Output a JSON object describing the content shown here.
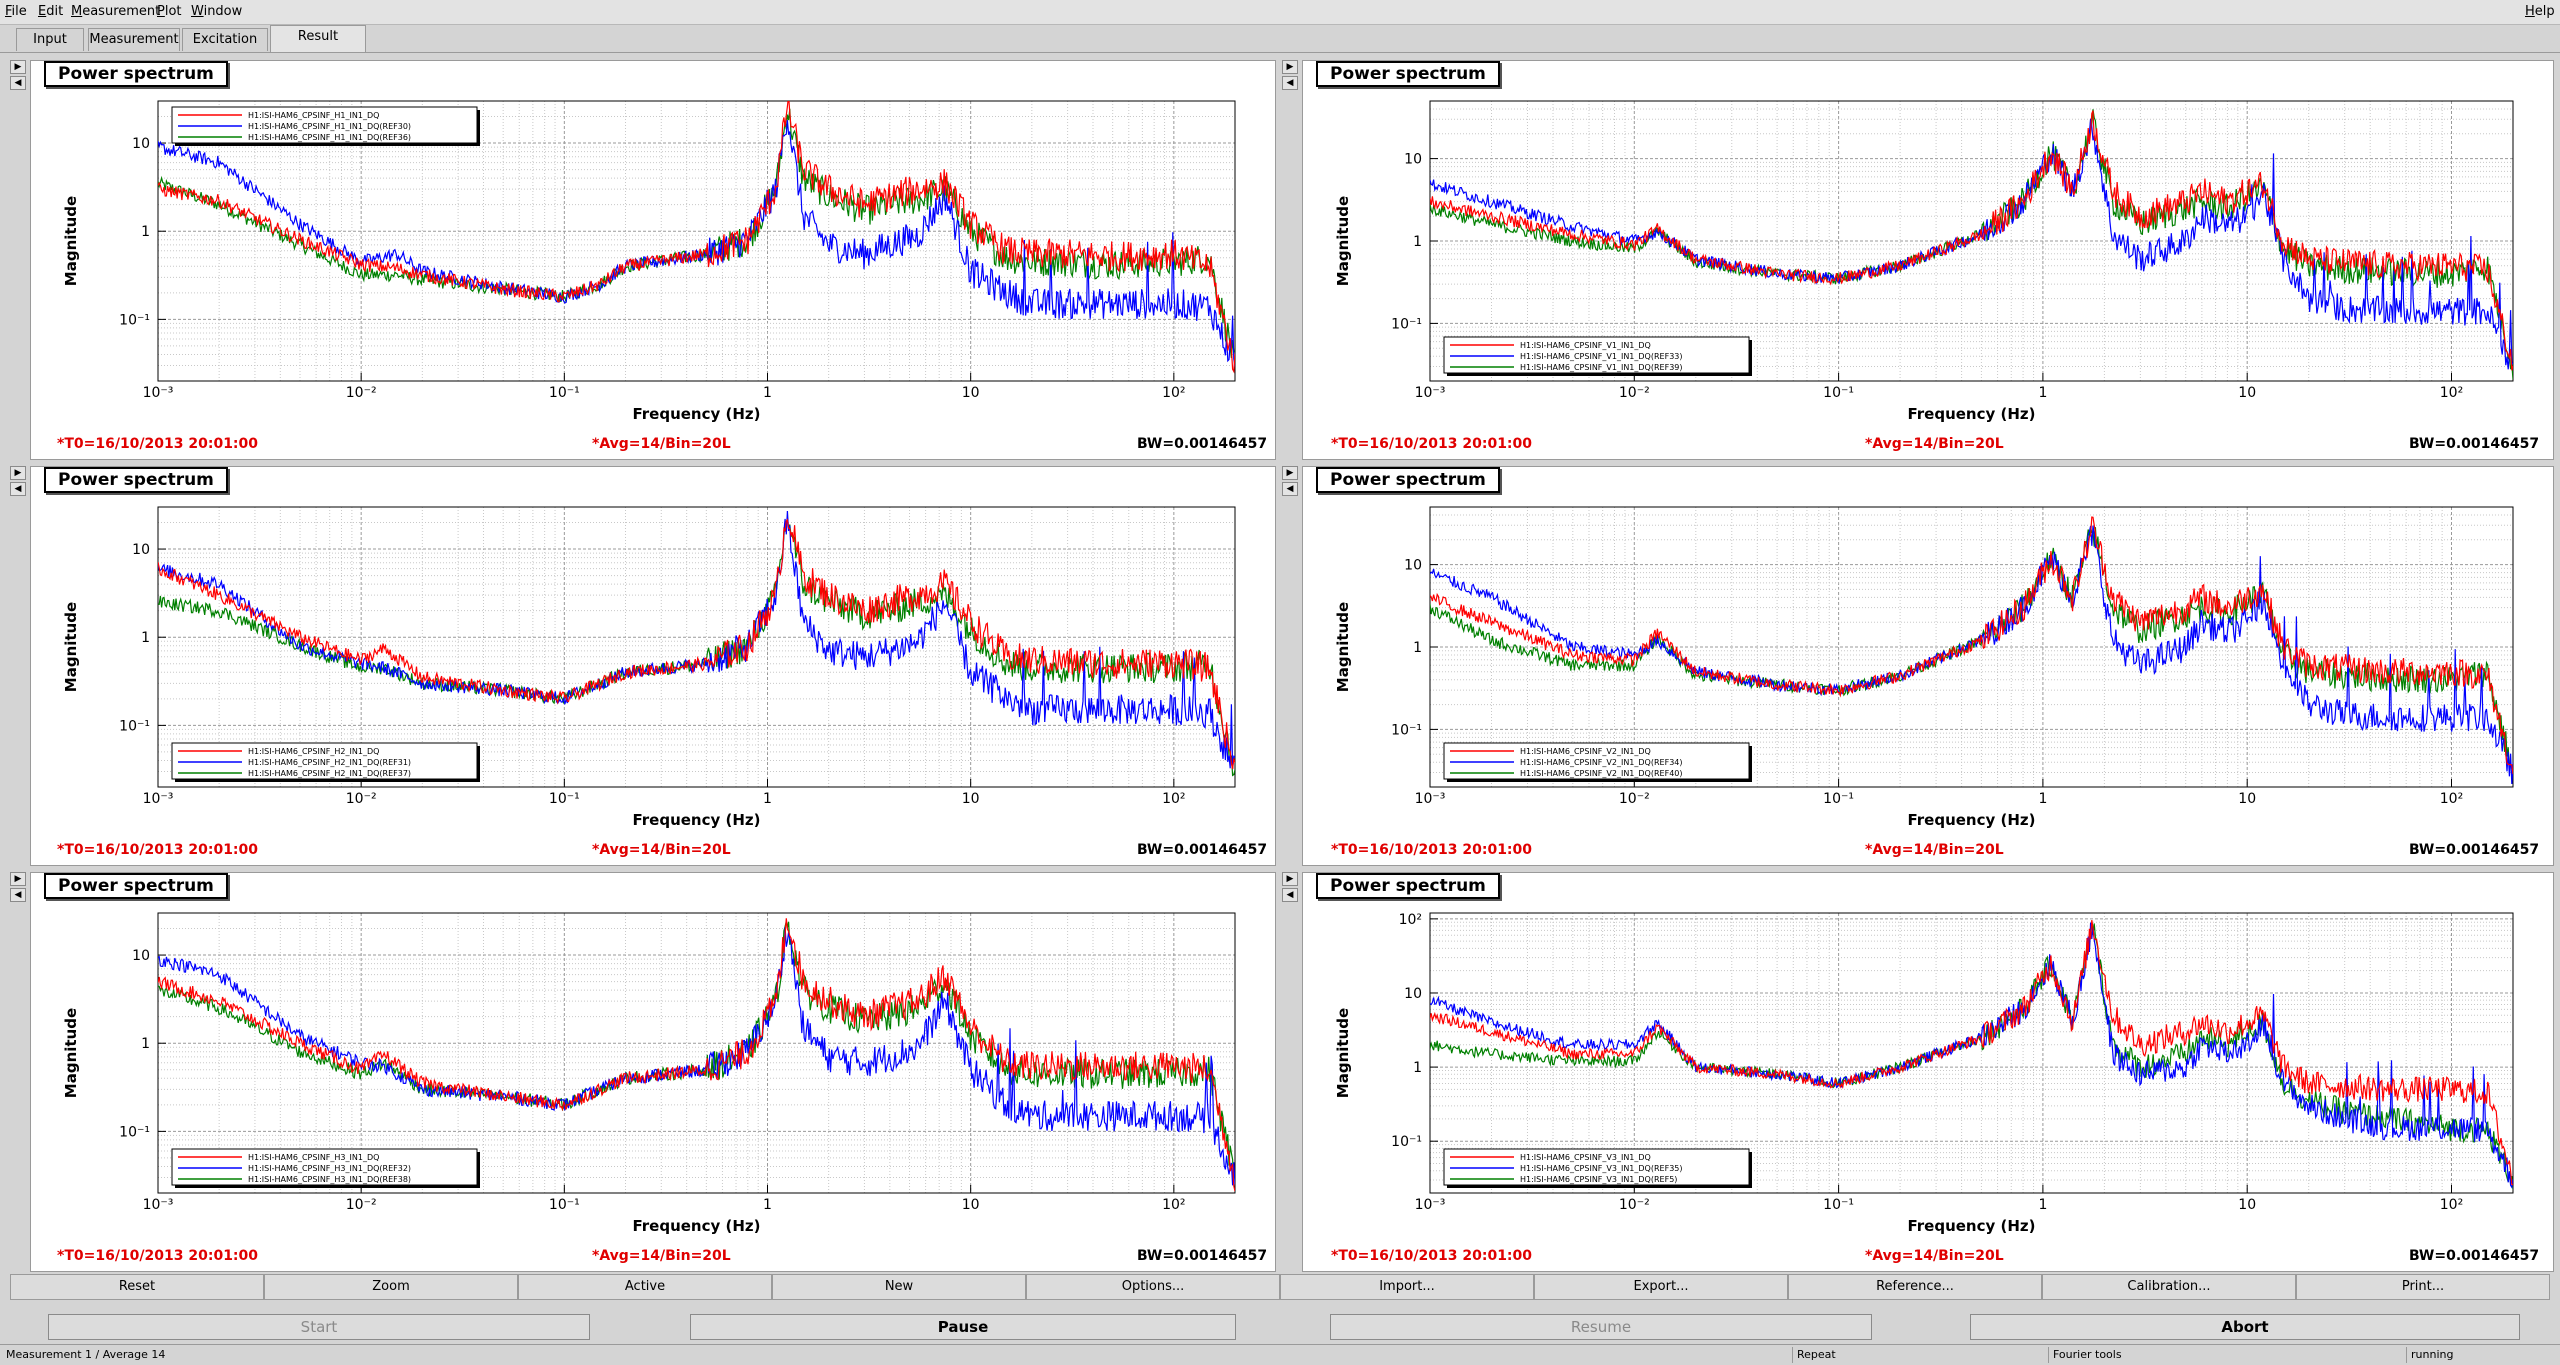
{
  "menu": {
    "file": "File",
    "edit": "Edit",
    "measurement": "Measurement",
    "plot": "Plot",
    "window": "Window",
    "help": "Help"
  },
  "tabs": [
    "Input",
    "Measurement",
    "Excitation",
    "Result"
  ],
  "colors": {
    "red": "#ff0000",
    "blue": "#0000ff",
    "green": "#008000",
    "info_red": "#e00000"
  },
  "panels": [
    {
      "title": "Power spectrum",
      "t0": "*T0=16/10/2013 20:01:00",
      "avg": "*Avg=14/Bin=20L",
      "bw": "BW=0.00146457"
    },
    {
      "title": "Power spectrum",
      "t0": "*T0=16/10/2013 20:01:00",
      "avg": "*Avg=14/Bin=20L",
      "bw": "BW=0.00146457"
    },
    {
      "title": "Power spectrum",
      "t0": "*T0=16/10/2013 20:01:00",
      "avg": "*Avg=14/Bin=20L",
      "bw": "BW=0.00146457"
    },
    {
      "title": "Power spectrum",
      "t0": "*T0=16/10/2013 20:01:00",
      "avg": "*Avg=14/Bin=20L",
      "bw": "BW=0.00146457"
    },
    {
      "title": "Power spectrum",
      "t0": "*T0=16/10/2013 20:01:00",
      "avg": "*Avg=14/Bin=20L",
      "bw": "BW=0.00146457"
    },
    {
      "title": "Power spectrum",
      "t0": "*T0=16/10/2013 20:01:00",
      "avg": "*Avg=14/Bin=20L",
      "bw": "BW=0.00146457"
    }
  ],
  "chart_data": [
    {
      "type": "line",
      "xscale": "log",
      "yscale": "log",
      "xlabel": "Frequency (Hz)",
      "ylabel": "Magnitude",
      "xlim": [
        0.001,
        200
      ],
      "ylim": [
        0.02,
        30
      ],
      "x_ticks": [
        "10⁻³",
        "10⁻²",
        "10⁻¹",
        "1",
        "10",
        "10²"
      ],
      "y_ticks": [
        "10⁻¹",
        "1",
        "10"
      ],
      "legend_position": "top-left",
      "x": [
        0.001,
        0.002,
        0.005,
        0.01,
        0.015,
        0.02,
        0.05,
        0.1,
        0.15,
        0.2,
        0.5,
        0.8,
        1.1,
        1.25,
        1.5,
        2,
        3,
        4,
        5.5,
        7.5,
        10,
        15,
        20,
        30,
        50,
        100,
        150,
        200
      ],
      "series": [
        {
          "name": "H1:ISI-HAM6_CPSINF_H1_IN1_DQ",
          "color": "#ff0000",
          "values": [
            3.0,
            2.2,
            0.8,
            0.42,
            0.38,
            0.32,
            0.22,
            0.18,
            0.25,
            0.4,
            0.55,
            0.8,
            3,
            28,
            5,
            3,
            2,
            2.5,
            3,
            3.5,
            1.2,
            0.6,
            0.55,
            0.55,
            0.52,
            0.55,
            0.4,
            0.03
          ]
        },
        {
          "name": "H1:ISI-HAM6_CPSINF_H1_IN1_DQ(REF30)",
          "color": "#0000ff",
          "values": [
            9,
            6,
            1.2,
            0.45,
            0.55,
            0.35,
            0.23,
            0.18,
            0.25,
            0.4,
            0.55,
            0.8,
            3,
            22,
            1.5,
            0.7,
            0.55,
            0.7,
            0.9,
            2.5,
            0.35,
            0.2,
            0.15,
            0.15,
            0.15,
            0.15,
            0.14,
            0.03
          ]
        },
        {
          "name": "H1:ISI-HAM6_CPSINF_H1_IN1_DQ(REF36)",
          "color": "#008000",
          "values": [
            3.5,
            2.0,
            0.7,
            0.32,
            0.32,
            0.28,
            0.22,
            0.18,
            0.25,
            0.4,
            0.55,
            0.8,
            3,
            25,
            4,
            2.5,
            1.7,
            2,
            2.3,
            3,
            1.0,
            0.5,
            0.45,
            0.45,
            0.42,
            0.45,
            0.5,
            0.03
          ]
        }
      ]
    },
    {
      "type": "line",
      "xscale": "log",
      "yscale": "log",
      "xlabel": "Frequency (Hz)",
      "ylabel": "Magnitude",
      "xlim": [
        0.001,
        200
      ],
      "ylim": [
        0.02,
        50
      ],
      "x_ticks": [
        "10⁻³",
        "10⁻²",
        "10⁻¹",
        "1",
        "10",
        "10²"
      ],
      "y_ticks": [
        "10⁻¹",
        "1",
        "10"
      ],
      "legend_position": "bottom-left",
      "x": [
        0.001,
        0.002,
        0.005,
        0.01,
        0.013,
        0.02,
        0.05,
        0.1,
        0.2,
        0.5,
        0.8,
        1.1,
        1.4,
        1.75,
        2.2,
        3,
        5,
        6,
        8,
        10,
        12,
        15,
        20,
        30,
        50,
        100,
        150,
        200
      ],
      "series": [
        {
          "name": "H1:ISI-HAM6_CPSINF_V1_IN1_DQ",
          "color": "#ff0000",
          "values": [
            3,
            2,
            1.2,
            0.9,
            1.4,
            0.6,
            0.4,
            0.35,
            0.5,
            1.2,
            3,
            12,
            4,
            30,
            4,
            2,
            3,
            4,
            3,
            4,
            5,
            1,
            0.6,
            0.55,
            0.5,
            0.5,
            0.45,
            0.03
          ]
        },
        {
          "name": "H1:ISI-HAM6_CPSINF_V1_IN1_DQ(REF33)",
          "color": "#0000ff",
          "values": [
            5,
            3,
            1.5,
            1,
            1.3,
            0.6,
            0.4,
            0.35,
            0.5,
            1.2,
            3,
            12,
            4,
            25,
            1.2,
            0.6,
            1,
            2,
            1.5,
            2,
            4,
            0.6,
            0.2,
            0.15,
            0.14,
            0.14,
            0.14,
            0.03
          ]
        },
        {
          "name": "H1:ISI-HAM6_CPSINF_V1_IN1_DQ(REF39)",
          "color": "#008000",
          "values": [
            2.5,
            1.6,
            1,
            0.8,
            1.3,
            0.55,
            0.4,
            0.35,
            0.5,
            1.2,
            3,
            12,
            4,
            28,
            3,
            1.6,
            2.5,
            3,
            2.5,
            3.5,
            4.5,
            0.8,
            0.5,
            0.45,
            0.42,
            0.4,
            0.5,
            0.03
          ]
        }
      ]
    },
    {
      "type": "line",
      "xscale": "log",
      "yscale": "log",
      "xlabel": "Frequency (Hz)",
      "ylabel": "Magnitude",
      "xlim": [
        0.001,
        200
      ],
      "ylim": [
        0.02,
        30
      ],
      "x_ticks": [
        "10⁻³",
        "10⁻²",
        "10⁻¹",
        "1",
        "10",
        "10²"
      ],
      "y_ticks": [
        "10⁻¹",
        "1",
        "10"
      ],
      "legend_position": "bottom-left",
      "x": [
        0.001,
        0.002,
        0.005,
        0.01,
        0.013,
        0.02,
        0.05,
        0.1,
        0.15,
        0.2,
        0.5,
        0.8,
        1.1,
        1.25,
        1.5,
        2,
        3,
        4,
        5.5,
        7.5,
        10,
        15,
        20,
        30,
        50,
        100,
        150,
        200
      ],
      "series": [
        {
          "name": "H1:ISI-HAM6_CPSINF_H2_IN1_DQ",
          "color": "#ff0000",
          "values": [
            6,
            3,
            1,
            0.55,
            0.75,
            0.35,
            0.25,
            0.2,
            0.3,
            0.4,
            0.5,
            0.8,
            3,
            28,
            5,
            3,
            2,
            2.5,
            3,
            4,
            1.5,
            0.6,
            0.55,
            0.52,
            0.5,
            0.52,
            0.45,
            0.03
          ]
        },
        {
          "name": "H1:ISI-HAM6_CPSINF_H2_IN1_DQ(REF31)",
          "color": "#0000ff",
          "values": [
            6,
            4,
            0.8,
            0.5,
            0.45,
            0.3,
            0.25,
            0.2,
            0.3,
            0.4,
            0.5,
            0.8,
            3,
            22,
            1.5,
            0.7,
            0.6,
            0.7,
            0.9,
            2.5,
            0.4,
            0.2,
            0.15,
            0.15,
            0.15,
            0.15,
            0.14,
            0.03
          ]
        },
        {
          "name": "H1:ISI-HAM6_CPSINF_H2_IN1_DQ(REF37)",
          "color": "#008000",
          "values": [
            2.5,
            2,
            0.8,
            0.45,
            0.45,
            0.3,
            0.25,
            0.2,
            0.3,
            0.4,
            0.5,
            0.8,
            3,
            25,
            4,
            2.5,
            1.8,
            2,
            2.5,
            3,
            1.2,
            0.5,
            0.45,
            0.45,
            0.45,
            0.45,
            0.5,
            0.03
          ]
        }
      ]
    },
    {
      "type": "line",
      "xscale": "log",
      "yscale": "log",
      "xlabel": "Frequency (Hz)",
      "ylabel": "Magnitude",
      "xlim": [
        0.001,
        200
      ],
      "ylim": [
        0.02,
        50
      ],
      "x_ticks": [
        "10⁻³",
        "10⁻²",
        "10⁻¹",
        "1",
        "10",
        "10²"
      ],
      "y_ticks": [
        "10⁻¹",
        "1",
        "10"
      ],
      "legend_position": "bottom-left",
      "x": [
        0.001,
        0.002,
        0.005,
        0.01,
        0.013,
        0.02,
        0.05,
        0.1,
        0.2,
        0.5,
        0.8,
        1.1,
        1.4,
        1.75,
        2.2,
        3,
        5,
        6,
        8,
        10,
        12,
        15,
        20,
        30,
        50,
        100,
        150,
        200
      ],
      "series": [
        {
          "name": "H1:ISI-HAM6_CPSINF_V2_IN1_DQ",
          "color": "#ff0000",
          "values": [
            4,
            2,
            0.8,
            0.7,
            1.5,
            0.5,
            0.35,
            0.3,
            0.45,
            1.2,
            3,
            12,
            4,
            30,
            4,
            2,
            3,
            4,
            3,
            4,
            5,
            1,
            0.6,
            0.55,
            0.5,
            0.5,
            0.45,
            0.03
          ]
        },
        {
          "name": "H1:ISI-HAM6_CPSINF_V2_IN1_DQ(REF34)",
          "color": "#0000ff",
          "values": [
            8,
            4,
            1,
            0.8,
            1.2,
            0.5,
            0.35,
            0.3,
            0.45,
            1.2,
            3,
            12,
            4,
            25,
            1.2,
            0.6,
            1,
            2,
            1.5,
            2,
            4,
            0.6,
            0.2,
            0.15,
            0.14,
            0.14,
            0.14,
            0.03
          ]
        },
        {
          "name": "H1:ISI-HAM6_CPSINF_V2_IN1_DQ(REF40)",
          "color": "#008000",
          "values": [
            3,
            1.2,
            0.6,
            0.6,
            1.3,
            0.45,
            0.35,
            0.3,
            0.45,
            1.2,
            3,
            12,
            4,
            28,
            3,
            1.6,
            2.5,
            3,
            2.5,
            3.5,
            4.5,
            0.8,
            0.5,
            0.45,
            0.42,
            0.4,
            0.5,
            0.03
          ]
        }
      ]
    },
    {
      "type": "line",
      "xscale": "log",
      "yscale": "log",
      "xlabel": "Frequency (Hz)",
      "ylabel": "Magnitude",
      "xlim": [
        0.001,
        200
      ],
      "ylim": [
        0.02,
        30
      ],
      "x_ticks": [
        "10⁻³",
        "10⁻²",
        "10⁻¹",
        "1",
        "10",
        "10²"
      ],
      "y_ticks": [
        "10⁻¹",
        "1",
        "10"
      ],
      "legend_position": "bottom-left",
      "x": [
        0.001,
        0.002,
        0.005,
        0.01,
        0.013,
        0.02,
        0.05,
        0.1,
        0.15,
        0.2,
        0.5,
        0.8,
        1.1,
        1.25,
        1.5,
        2,
        3,
        4,
        5.5,
        7.5,
        10,
        15,
        20,
        30,
        50,
        100,
        150,
        200
      ],
      "series": [
        {
          "name": "H1:ISI-HAM6_CPSINF_H3_IN1_DQ",
          "color": "#ff0000",
          "values": [
            5,
            3,
            1,
            0.5,
            0.75,
            0.35,
            0.25,
            0.2,
            0.3,
            0.4,
            0.5,
            0.8,
            3,
            28,
            5,
            3,
            2,
            2.5,
            3,
            6,
            1.5,
            0.6,
            0.55,
            0.55,
            0.55,
            0.55,
            0.5,
            0.03
          ]
        },
        {
          "name": "H1:ISI-HAM6_CPSINF_H3_IN1_DQ(REF32)",
          "color": "#0000ff",
          "values": [
            9,
            6,
            1.2,
            0.6,
            0.55,
            0.3,
            0.25,
            0.2,
            0.3,
            0.4,
            0.5,
            0.8,
            3,
            22,
            1.5,
            0.7,
            0.6,
            0.7,
            0.9,
            3,
            0.5,
            0.2,
            0.15,
            0.15,
            0.15,
            0.15,
            0.14,
            0.03
          ]
        },
        {
          "name": "H1:ISI-HAM6_CPSINF_H3_IN1_DQ(REF38)",
          "color": "#008000",
          "values": [
            4,
            2.5,
            0.8,
            0.45,
            0.6,
            0.3,
            0.25,
            0.2,
            0.3,
            0.4,
            0.5,
            0.8,
            3,
            25,
            4,
            2.5,
            1.8,
            2,
            2.5,
            5,
            1.2,
            0.5,
            0.45,
            0.45,
            0.45,
            0.45,
            0.5,
            0.03
          ]
        }
      ]
    },
    {
      "type": "line",
      "xscale": "log",
      "yscale": "log",
      "xlabel": "Frequency (Hz)",
      "ylabel": "Magnitude",
      "xlim": [
        0.001,
        200
      ],
      "ylim": [
        0.02,
        120
      ],
      "x_ticks": [
        "10⁻³",
        "10⁻²",
        "10⁻¹",
        "1",
        "10",
        "10²"
      ],
      "y_ticks": [
        "10⁻¹",
        "1",
        "10",
        "10²"
      ],
      "legend_position": "bottom-left",
      "x": [
        0.001,
        0.002,
        0.005,
        0.01,
        0.013,
        0.02,
        0.05,
        0.1,
        0.2,
        0.5,
        0.8,
        1.1,
        1.4,
        1.75,
        2.2,
        3,
        5,
        6,
        8,
        10,
        12,
        15,
        20,
        30,
        50,
        100,
        150,
        200
      ],
      "series": [
        {
          "name": "H1:ISI-HAM6_CPSINF_V3_IN1_DQ",
          "color": "#ff0000",
          "values": [
            5,
            3,
            1.5,
            1.5,
            3.5,
            1,
            0.8,
            0.6,
            1,
            2.5,
            6,
            25,
            4,
            90,
            5,
            2,
            3,
            4,
            3,
            4,
            5,
            1,
            0.6,
            0.55,
            0.5,
            0.5,
            0.45,
            0.03
          ]
        },
        {
          "name": "H1:ISI-HAM6_CPSINF_V3_IN1_DQ(REF35)",
          "color": "#0000ff",
          "values": [
            8,
            4,
            2,
            2,
            4,
            1,
            0.8,
            0.6,
            1,
            2.5,
            6,
            25,
            4,
            80,
            1.5,
            0.8,
            1,
            2,
            1.5,
            2,
            4,
            0.6,
            0.3,
            0.2,
            0.15,
            0.15,
            0.14,
            0.03
          ]
        },
        {
          "name": "H1:ISI-HAM6_CPSINF_V3_IN1_DQ(REF5)",
          "color": "#008000",
          "values": [
            2,
            1.5,
            1.2,
            1.2,
            3,
            1,
            0.8,
            0.6,
            1,
            2.5,
            6,
            25,
            4,
            85,
            2,
            1,
            1.5,
            2.5,
            2,
            3,
            4,
            0.6,
            0.35,
            0.25,
            0.2,
            0.15,
            0.14,
            0.03
          ]
        }
      ]
    }
  ],
  "buttons": [
    "Reset",
    "Zoom",
    "Active",
    "New",
    "Options...",
    "Import...",
    "Export...",
    "Reference...",
    "Calibration...",
    "Print..."
  ],
  "controls": {
    "start": "Start",
    "pause": "Pause",
    "resume": "Resume",
    "abort": "Abort"
  },
  "status": {
    "measurement": "Measurement 1 / Average 14",
    "repeat": "Repeat",
    "tool": "Fourier tools",
    "state": "running"
  }
}
